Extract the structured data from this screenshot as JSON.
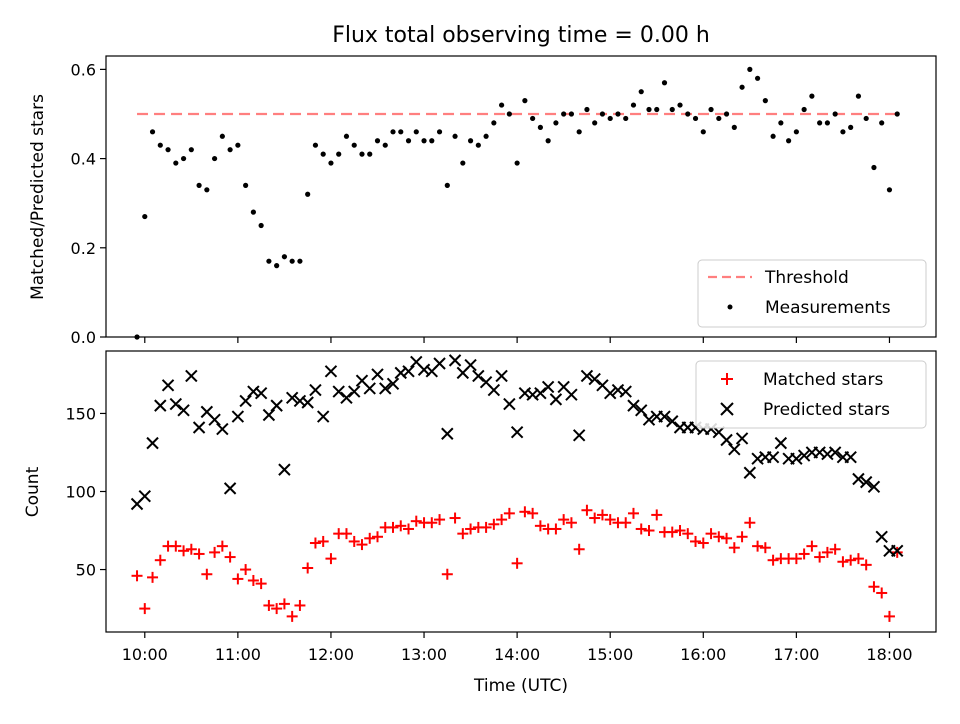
{
  "title": "Flux total observing time = 0.00 h",
  "colors": {
    "threshold": "#ff7f7f",
    "measurements": "#000000",
    "matched": "#ff0000",
    "predicted": "#000000"
  },
  "chart_data": [
    {
      "type": "scatter",
      "title": "Flux total observing time = 0.00 h",
      "ylabel": "Matched/Predicted stars",
      "xlabel": "",
      "xlim": [
        "09:35",
        "18:30"
      ],
      "ylim": [
        0,
        0.63
      ],
      "yticks": [
        "0.0",
        "0.2",
        "0.4",
        "0.6"
      ],
      "legend_position": "lower right",
      "series": [
        {
          "name": "Threshold",
          "kind": "dashed-line",
          "x": [
            "09:55",
            "18:05"
          ],
          "y": [
            0.5,
            0.5
          ]
        },
        {
          "name": "Measurements",
          "kind": "points",
          "x": [
            "09:55",
            "10:00",
            "10:05",
            "10:10",
            "10:15",
            "10:20",
            "10:25",
            "10:30",
            "10:35",
            "10:40",
            "10:45",
            "10:50",
            "10:55",
            "11:00",
            "11:05",
            "11:10",
            "11:15",
            "11:20",
            "11:25",
            "11:30",
            "11:35",
            "11:40",
            "11:45",
            "11:50",
            "11:55",
            "12:00",
            "12:05",
            "12:10",
            "12:15",
            "12:20",
            "12:25",
            "12:30",
            "12:35",
            "12:40",
            "12:45",
            "12:50",
            "12:55",
            "13:00",
            "13:05",
            "13:10",
            "13:15",
            "13:20",
            "13:25",
            "13:30",
            "13:35",
            "13:40",
            "13:45",
            "13:50",
            "13:55",
            "14:00",
            "14:05",
            "14:10",
            "14:15",
            "14:20",
            "14:25",
            "14:30",
            "14:35",
            "14:40",
            "14:45",
            "14:50",
            "14:55",
            "15:00",
            "15:05",
            "15:10",
            "15:15",
            "15:20",
            "15:25",
            "15:30",
            "15:35",
            "15:40",
            "15:45",
            "15:50",
            "15:55",
            "16:00",
            "16:05",
            "16:10",
            "16:15",
            "16:20",
            "16:25",
            "16:30",
            "16:35",
            "16:40",
            "16:45",
            "16:50",
            "16:55",
            "17:00",
            "17:05",
            "17:10",
            "17:15",
            "17:20",
            "17:25",
            "17:30",
            "17:35",
            "17:40",
            "17:45",
            "17:50",
            "17:55",
            "18:00",
            "18:05"
          ],
          "y": [
            0.0,
            0.27,
            0.46,
            0.43,
            0.42,
            0.39,
            0.4,
            0.42,
            0.34,
            0.33,
            0.4,
            0.45,
            0.42,
            0.43,
            0.34,
            0.28,
            0.25,
            0.17,
            0.16,
            0.18,
            0.17,
            0.17,
            0.32,
            0.43,
            0.41,
            0.39,
            0.41,
            0.45,
            0.43,
            0.41,
            0.41,
            0.44,
            0.43,
            0.46,
            0.46,
            0.44,
            0.46,
            0.44,
            0.44,
            0.46,
            0.34,
            0.45,
            0.39,
            0.44,
            0.43,
            0.45,
            0.48,
            0.52,
            0.5,
            0.39,
            0.53,
            0.49,
            0.47,
            0.44,
            0.48,
            0.5,
            0.5,
            0.46,
            0.51,
            0.48,
            0.5,
            0.49,
            0.5,
            0.49,
            0.52,
            0.55,
            0.51,
            0.51,
            0.57,
            0.51,
            0.52,
            0.5,
            0.49,
            0.46,
            0.51,
            0.49,
            0.5,
            0.47,
            0.56,
            0.6,
            0.58,
            0.53,
            0.45,
            0.48,
            0.44,
            0.46,
            0.51,
            0.54,
            0.48,
            0.48,
            0.5,
            0.46,
            0.47,
            0.54,
            0.49,
            0.38,
            0.48,
            0.33,
            0.5
          ]
        }
      ]
    },
    {
      "type": "scatter",
      "title": "",
      "ylabel": "Count",
      "xlabel": "Time (UTC)",
      "xlim": [
        "09:35",
        "18:30"
      ],
      "ylim": [
        10,
        190
      ],
      "yticks": [
        "50",
        "100",
        "150"
      ],
      "xticks": [
        "10:00",
        "11:00",
        "12:00",
        "13:00",
        "14:00",
        "15:00",
        "16:00",
        "17:00",
        "18:00"
      ],
      "legend_position": "upper right",
      "series": [
        {
          "name": "Matched stars",
          "marker": "plus",
          "x": [
            "09:55",
            "10:00",
            "10:05",
            "10:10",
            "10:15",
            "10:20",
            "10:25",
            "10:30",
            "10:35",
            "10:40",
            "10:45",
            "10:50",
            "10:55",
            "11:00",
            "11:05",
            "11:10",
            "11:15",
            "11:20",
            "11:25",
            "11:30",
            "11:35",
            "11:40",
            "11:45",
            "11:50",
            "11:55",
            "12:00",
            "12:05",
            "12:10",
            "12:15",
            "12:20",
            "12:25",
            "12:30",
            "12:35",
            "12:40",
            "12:45",
            "12:50",
            "12:55",
            "13:00",
            "13:05",
            "13:10",
            "13:15",
            "13:20",
            "13:25",
            "13:30",
            "13:35",
            "13:40",
            "13:45",
            "13:50",
            "13:55",
            "14:00",
            "14:05",
            "14:10",
            "14:15",
            "14:20",
            "14:25",
            "14:30",
            "14:35",
            "14:40",
            "14:45",
            "14:50",
            "14:55",
            "15:00",
            "15:05",
            "15:10",
            "15:15",
            "15:20",
            "15:25",
            "15:30",
            "15:35",
            "15:40",
            "15:45",
            "15:50",
            "15:55",
            "16:00",
            "16:05",
            "16:10",
            "16:15",
            "16:20",
            "16:25",
            "16:30",
            "16:35",
            "16:40",
            "16:45",
            "16:50",
            "16:55",
            "17:00",
            "17:05",
            "17:10",
            "17:15",
            "17:20",
            "17:25",
            "17:30",
            "17:35",
            "17:40",
            "17:45",
            "17:50",
            "17:55",
            "18:00",
            "18:05"
          ],
          "y": [
            46,
            25,
            45,
            56,
            65,
            65,
            62,
            63,
            60,
            47,
            61,
            65,
            58,
            44,
            50,
            43,
            41,
            27,
            25,
            28,
            20,
            27,
            51,
            67,
            68,
            57,
            73,
            73,
            68,
            66,
            70,
            71,
            77,
            77,
            78,
            76,
            81,
            80,
            80,
            82,
            47,
            83,
            73,
            76,
            77,
            77,
            79,
            82,
            86,
            54,
            87,
            86,
            78,
            76,
            76,
            82,
            80,
            63,
            88,
            83,
            85,
            82,
            80,
            80,
            86,
            76,
            75,
            85,
            74,
            74,
            75,
            73,
            68,
            67,
            73,
            71,
            70,
            64,
            71,
            80,
            65,
            64,
            56,
            57,
            57,
            57,
            60,
            65,
            58,
            61,
            63,
            55,
            56,
            57,
            53,
            39,
            35,
            20,
            61
          ]
        },
        {
          "name": "Predicted stars",
          "marker": "x",
          "x": [
            "09:55",
            "10:00",
            "10:05",
            "10:10",
            "10:15",
            "10:20",
            "10:25",
            "10:30",
            "10:35",
            "10:40",
            "10:45",
            "10:50",
            "10:55",
            "11:00",
            "11:05",
            "11:10",
            "11:15",
            "11:20",
            "11:25",
            "11:30",
            "11:35",
            "11:40",
            "11:45",
            "11:50",
            "11:55",
            "12:00",
            "12:05",
            "12:10",
            "12:15",
            "12:20",
            "12:25",
            "12:30",
            "12:35",
            "12:40",
            "12:45",
            "12:50",
            "12:55",
            "13:00",
            "13:05",
            "13:10",
            "13:15",
            "13:20",
            "13:25",
            "13:30",
            "13:35",
            "13:40",
            "13:45",
            "13:50",
            "13:55",
            "14:00",
            "14:05",
            "14:10",
            "14:15",
            "14:20",
            "14:25",
            "14:30",
            "14:35",
            "14:40",
            "14:45",
            "14:50",
            "14:55",
            "15:00",
            "15:05",
            "15:10",
            "15:15",
            "15:20",
            "15:25",
            "15:30",
            "15:35",
            "15:40",
            "15:45",
            "15:50",
            "15:55",
            "16:00",
            "16:05",
            "16:10",
            "16:15",
            "16:20",
            "16:25",
            "16:30",
            "16:35",
            "16:40",
            "16:45",
            "16:50",
            "16:55",
            "17:00",
            "17:05",
            "17:10",
            "17:15",
            "17:20",
            "17:25",
            "17:30",
            "17:35",
            "17:40",
            "17:45",
            "17:50",
            "17:55",
            "18:00",
            "18:05"
          ],
          "y": [
            92,
            97,
            131,
            155,
            168,
            156,
            152,
            174,
            141,
            151,
            146,
            140,
            102,
            148,
            158,
            164,
            163,
            149,
            155,
            114,
            160,
            158,
            157,
            165,
            148,
            177,
            164,
            160,
            164,
            171,
            166,
            175,
            166,
            169,
            176,
            177,
            183,
            178,
            177,
            182,
            137,
            184,
            176,
            181,
            174,
            170,
            165,
            174,
            156,
            138,
            163,
            162,
            163,
            167,
            159,
            167,
            162,
            136,
            174,
            172,
            168,
            163,
            165,
            164,
            155,
            152,
            146,
            148,
            148,
            145,
            141,
            141,
            141,
            140,
            140,
            138,
            133,
            127,
            134,
            112,
            121,
            122,
            122,
            131,
            121,
            121,
            123,
            125,
            125,
            124,
            125,
            122,
            122,
            108,
            106,
            103,
            71,
            62,
            62
          ]
        }
      ]
    }
  ]
}
